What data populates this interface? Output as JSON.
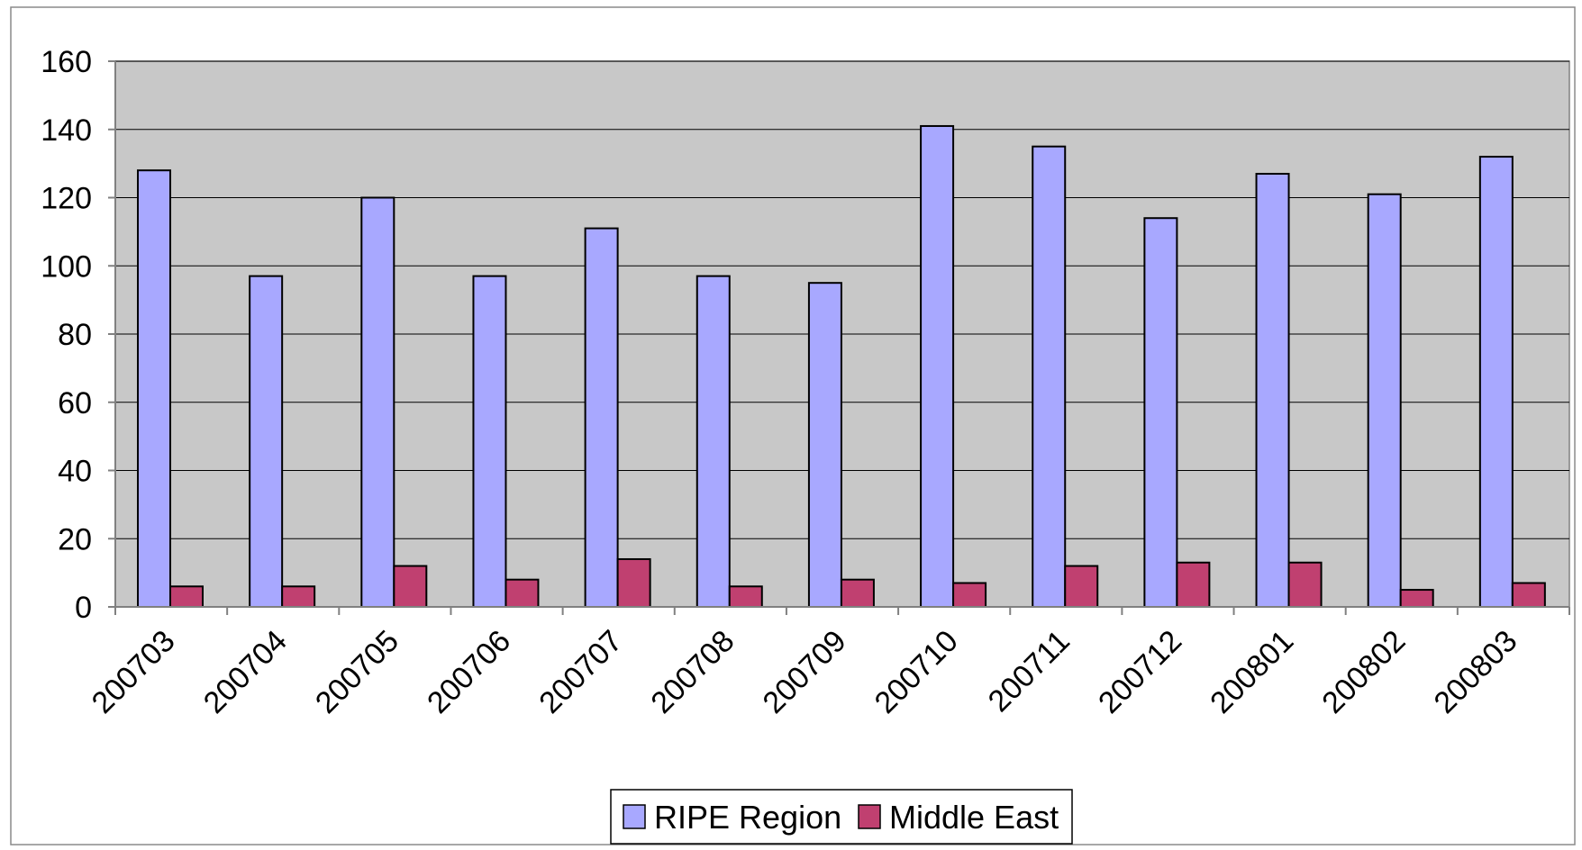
{
  "chart_data": {
    "type": "bar",
    "title": "",
    "xlabel": "",
    "ylabel": "",
    "categories": [
      "200703",
      "200704",
      "200705",
      "200706",
      "200707",
      "200708",
      "200709",
      "200710",
      "200711",
      "200712",
      "200801",
      "200802",
      "200803"
    ],
    "series": [
      {
        "name": "RIPE Region",
        "color": "#a8a8ff",
        "values": [
          128,
          97,
          120,
          97,
          111,
          97,
          95,
          141,
          135,
          114,
          127,
          121,
          132
        ]
      },
      {
        "name": "Middle East",
        "color": "#c04070",
        "values": [
          6,
          6,
          12,
          8,
          14,
          6,
          8,
          7,
          12,
          13,
          13,
          5,
          7
        ]
      }
    ],
    "ylim": [
      0,
      160
    ],
    "yticks": [
      0,
      20,
      40,
      60,
      80,
      100,
      120,
      140,
      160
    ],
    "grid": true,
    "legend_position": "bottom-center",
    "plot_background": "#c8c8c8"
  }
}
